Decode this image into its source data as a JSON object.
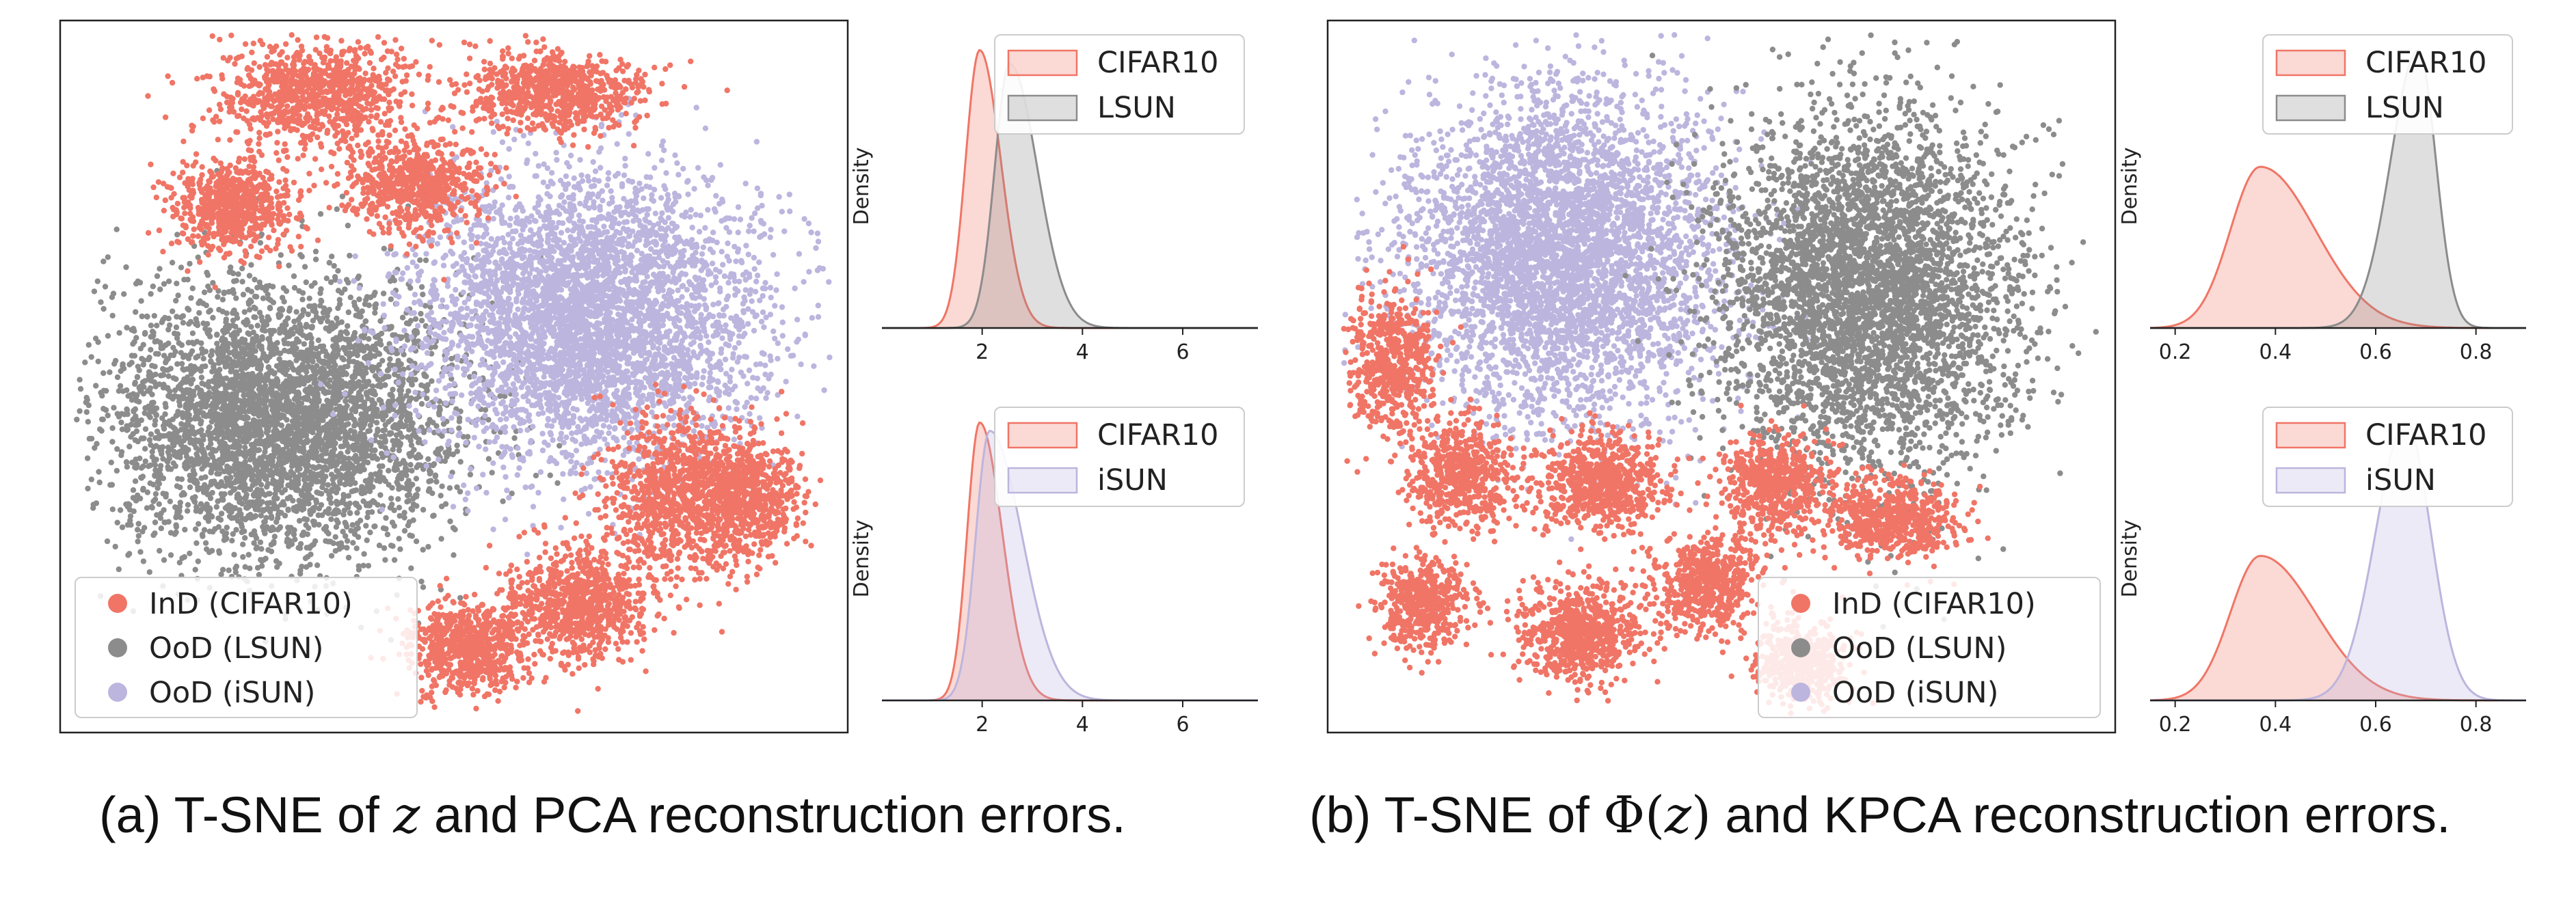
{
  "colors": {
    "ind": "#f07566",
    "lsun": "#8c8c8c",
    "isun": "#bcb5de"
  },
  "captions": {
    "a": {
      "prefix": "(a) T-SNE of ",
      "sym": "z",
      "suffix": " and PCA reconstruction errors."
    },
    "b": {
      "prefix": "(b) T-SNE of ",
      "sym_phi": "Φ(",
      "sym": "z",
      "sym_close": ")",
      "suffix": " and KPCA reconstruction errors."
    }
  },
  "chart_data": [
    {
      "id": "tsne_a",
      "type": "scatter",
      "title": "",
      "xlabel": "",
      "ylabel": "",
      "legend": {
        "position": "bottom-left",
        "entries": [
          "InD (CIFAR10)",
          "OoD (LSUN)",
          "OoD (iSUN)"
        ]
      },
      "clusters": [
        {
          "series": "InD (CIFAR10)",
          "center": [
            0.32,
            0.1
          ],
          "spread": [
            0.11,
            0.06
          ],
          "count": 900
        },
        {
          "series": "InD (CIFAR10)",
          "center": [
            0.63,
            0.1
          ],
          "spread": [
            0.1,
            0.05
          ],
          "count": 800
        },
        {
          "series": "InD (CIFAR10)",
          "center": [
            0.22,
            0.26
          ],
          "spread": [
            0.07,
            0.06
          ],
          "count": 700
        },
        {
          "series": "InD (CIFAR10)",
          "center": [
            0.45,
            0.23
          ],
          "spread": [
            0.08,
            0.06
          ],
          "count": 700
        },
        {
          "series": "InD (CIFAR10)",
          "center": [
            0.78,
            0.67
          ],
          "spread": [
            0.08,
            0.1
          ],
          "count": 900
        },
        {
          "series": "InD (CIFAR10)",
          "center": [
            0.87,
            0.67
          ],
          "spread": [
            0.06,
            0.08
          ],
          "count": 700
        },
        {
          "series": "InD (CIFAR10)",
          "center": [
            0.66,
            0.82
          ],
          "spread": [
            0.08,
            0.07
          ],
          "count": 800
        },
        {
          "series": "InD (CIFAR10)",
          "center": [
            0.52,
            0.88
          ],
          "spread": [
            0.07,
            0.06
          ],
          "count": 700
        },
        {
          "series": "OoD (LSUN)",
          "center": [
            0.28,
            0.56
          ],
          "spread": [
            0.2,
            0.17
          ],
          "count": 4200
        },
        {
          "series": "OoD (iSUN)",
          "center": [
            0.67,
            0.42
          ],
          "spread": [
            0.19,
            0.18
          ],
          "count": 4200
        }
      ]
    },
    {
      "id": "kde_a1",
      "type": "area",
      "title": "",
      "xlabel": "",
      "ylabel": "Density",
      "xlim": [
        0,
        7.5
      ],
      "xticks": [
        2,
        4,
        6
      ],
      "legend": {
        "position": "top-right",
        "entries": [
          "CIFAR10",
          "LSUN"
        ]
      },
      "series": [
        {
          "name": "CIFAR10",
          "peak_x": 1.95,
          "peak_height": 1.0,
          "sigma_left": 0.28,
          "sigma_right": 0.42
        },
        {
          "name": "LSUN",
          "peak_x": 2.55,
          "peak_height": 0.95,
          "sigma_left": 0.3,
          "sigma_right": 0.55
        }
      ]
    },
    {
      "id": "kde_a2",
      "type": "area",
      "title": "",
      "xlabel": "",
      "ylabel": "Density",
      "xlim": [
        0,
        7.5
      ],
      "xticks": [
        2,
        4,
        6
      ],
      "legend": {
        "position": "top-right",
        "entries": [
          "CIFAR10",
          "iSUN"
        ]
      },
      "series": [
        {
          "name": "CIFAR10",
          "peak_x": 1.95,
          "peak_height": 1.0,
          "sigma_left": 0.25,
          "sigma_right": 0.45
        },
        {
          "name": "iSUN",
          "peak_x": 2.15,
          "peak_height": 0.97,
          "sigma_left": 0.28,
          "sigma_right": 0.65
        }
      ]
    },
    {
      "id": "tsne_b",
      "type": "scatter",
      "title": "",
      "xlabel": "",
      "ylabel": "",
      "legend": {
        "position": "bottom-right",
        "entries": [
          "InD (CIFAR10)",
          "OoD (LSUN)",
          "OoD (iSUN)"
        ]
      },
      "clusters": [
        {
          "series": "OoD (iSUN)",
          "center": [
            0.3,
            0.33
          ],
          "spread": [
            0.18,
            0.21
          ],
          "count": 4200
        },
        {
          "series": "OoD (LSUN)",
          "center": [
            0.68,
            0.38
          ],
          "spread": [
            0.17,
            0.23
          ],
          "count": 4200
        },
        {
          "series": "InD (CIFAR10)",
          "center": [
            0.08,
            0.48
          ],
          "spread": [
            0.05,
            0.09
          ],
          "count": 600
        },
        {
          "series": "InD (CIFAR10)",
          "center": [
            0.17,
            0.64
          ],
          "spread": [
            0.06,
            0.07
          ],
          "count": 600
        },
        {
          "series": "InD (CIFAR10)",
          "center": [
            0.12,
            0.82
          ],
          "spread": [
            0.05,
            0.06
          ],
          "count": 500
        },
        {
          "series": "InD (CIFAR10)",
          "center": [
            0.35,
            0.65
          ],
          "spread": [
            0.07,
            0.06
          ],
          "count": 700
        },
        {
          "series": "InD (CIFAR10)",
          "center": [
            0.32,
            0.86
          ],
          "spread": [
            0.07,
            0.06
          ],
          "count": 700
        },
        {
          "series": "InD (CIFAR10)",
          "center": [
            0.48,
            0.79
          ],
          "spread": [
            0.06,
            0.06
          ],
          "count": 600
        },
        {
          "series": "InD (CIFAR10)",
          "center": [
            0.57,
            0.65
          ],
          "spread": [
            0.06,
            0.06
          ],
          "count": 600
        },
        {
          "series": "InD (CIFAR10)",
          "center": [
            0.72,
            0.7
          ],
          "spread": [
            0.07,
            0.05
          ],
          "count": 600
        },
        {
          "series": "InD (CIFAR10)",
          "center": [
            0.6,
            0.9
          ],
          "spread": [
            0.05,
            0.05
          ],
          "count": 500
        }
      ]
    },
    {
      "id": "kde_b1",
      "type": "area",
      "title": "",
      "xlabel": "",
      "ylabel": "Density",
      "xlim": [
        0.15,
        0.9
      ],
      "xticks": [
        0.2,
        0.4,
        0.6,
        0.8
      ],
      "legend": {
        "position": "top-right",
        "entries": [
          "CIFAR10",
          "LSUN"
        ]
      },
      "series": [
        {
          "name": "CIFAR10",
          "peak_x": 0.37,
          "peak_height": 0.58,
          "sigma_left": 0.06,
          "sigma_right": 0.11
        },
        {
          "name": "LSUN",
          "peak_x": 0.685,
          "peak_height": 1.0,
          "sigma_left": 0.055,
          "sigma_right": 0.035
        }
      ]
    },
    {
      "id": "kde_b2",
      "type": "area",
      "title": "",
      "xlabel": "",
      "ylabel": "Density",
      "xlim": [
        0.15,
        0.9
      ],
      "xticks": [
        0.2,
        0.4,
        0.6,
        0.8
      ],
      "legend": {
        "position": "top-right",
        "entries": [
          "CIFAR10",
          "iSUN"
        ]
      },
      "series": [
        {
          "name": "CIFAR10",
          "peak_x": 0.37,
          "peak_height": 0.52,
          "sigma_left": 0.06,
          "sigma_right": 0.11
        },
        {
          "name": "iSUN",
          "peak_x": 0.66,
          "peak_height": 1.0,
          "sigma_left": 0.06,
          "sigma_right": 0.05
        }
      ]
    }
  ]
}
